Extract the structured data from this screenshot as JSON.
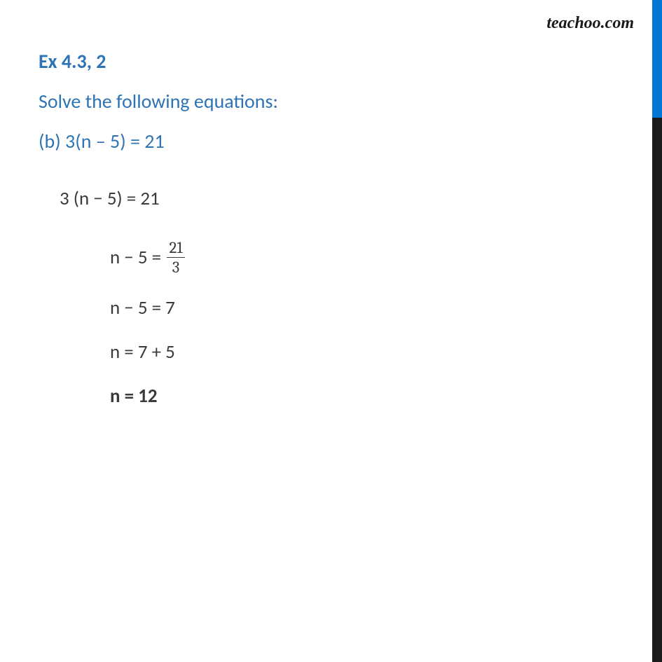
{
  "watermark": "teachoo.com",
  "colors": {
    "sidebar_top": "#0078d4",
    "sidebar_bottom": "#1a1a1a",
    "heading": "#2e74b5",
    "subheading": "#2e74b5",
    "equation_label": "#2e74b5",
    "body_text": "#3b3b3b",
    "watermark": "#1a1a1a"
  },
  "heading": "Ex 4.3, 2",
  "subheading": "Solve the following equations:",
  "equation_label": "(b) 3(n – 5) = 21",
  "steps": {
    "s1": "3 (n − 5) = 21",
    "s2_lhs": "n − 5 = ",
    "s2_frac_num": "21",
    "s2_frac_den": "3",
    "s3": "n − 5 = 7",
    "s4": "n = 7 + 5",
    "s5": "n = 12"
  }
}
